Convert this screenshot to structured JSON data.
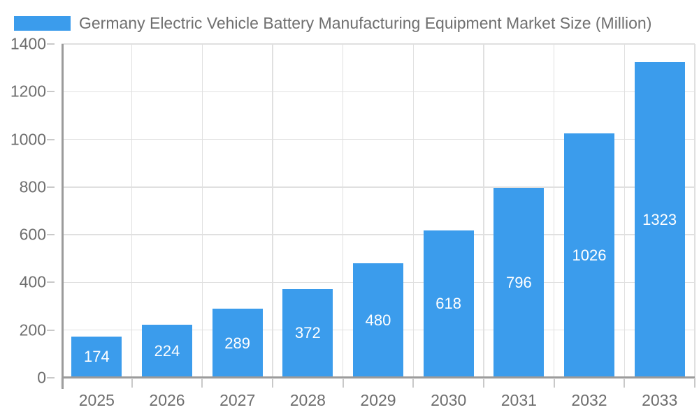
{
  "chart_data": {
    "type": "bar",
    "title": "Germany Electric Vehicle Battery Manufacturing Equipment Market Size (Million)",
    "legend": [
      "Germany Electric Vehicle Battery Manufacturing Equipment Market Size (Million)"
    ],
    "legend_position": "top-left",
    "categories": [
      "2025",
      "2026",
      "2027",
      "2028",
      "2029",
      "2030",
      "2031",
      "2032",
      "2033"
    ],
    "series": [
      {
        "name": "Germany Electric Vehicle Battery Manufacturing Equipment Market Size (Million)",
        "values": [
          174,
          224,
          289,
          372,
          480,
          618,
          796,
          1026,
          1323
        ]
      }
    ],
    "xlabel": "",
    "ylabel": "",
    "ylim": [
      0,
      1400
    ],
    "ytick_step": 200,
    "yticks": [
      0,
      200,
      400,
      600,
      800,
      1000,
      1200,
      1400
    ],
    "grid": true,
    "bar_value_labels": "inside-center",
    "colors": {
      "bar": "#3B9CEC",
      "bar_label": "#FFFFFF",
      "axis_text": "#6E6E6E",
      "title_text": "#6F6F6F",
      "grid_line": "#E0E0E0",
      "axis_line": "#9B9B9B",
      "tick": "#C9C9C9",
      "background": "#FFFFFF"
    }
  }
}
